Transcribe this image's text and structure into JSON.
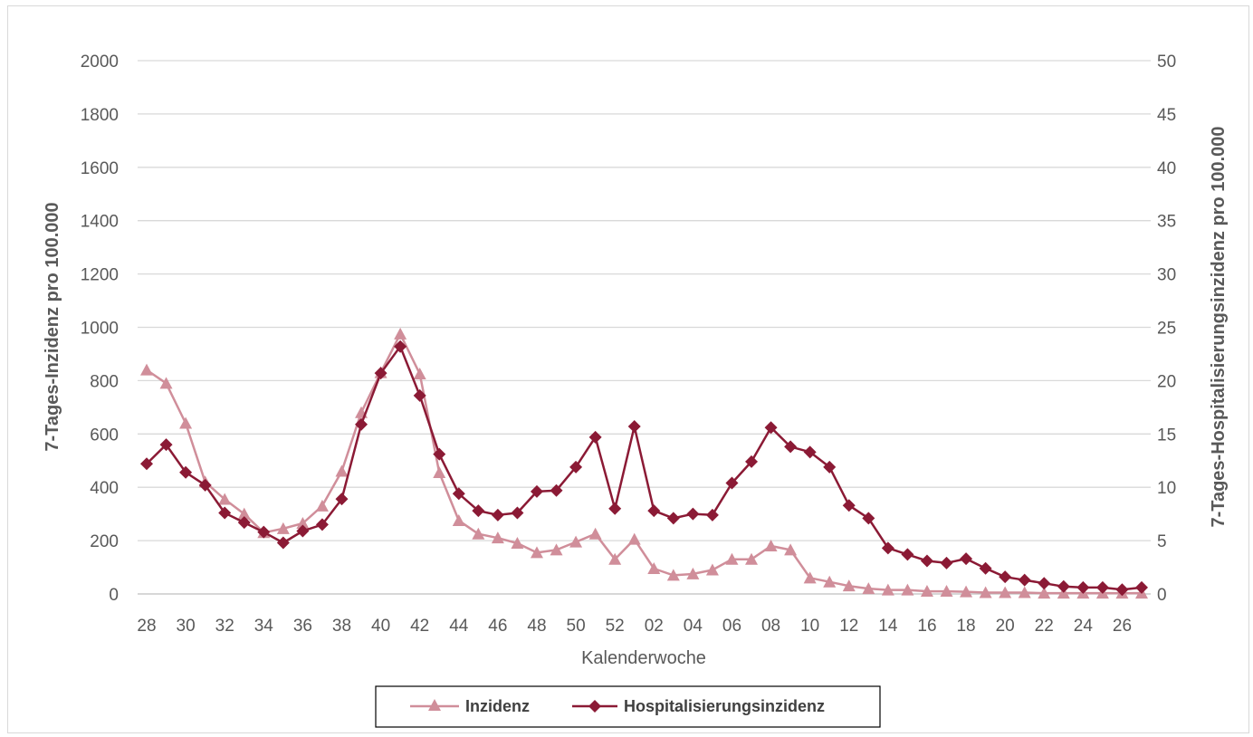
{
  "chart_data": {
    "type": "line",
    "xlabel": "Kalenderwoche",
    "ylabel_left": "7-Tages-Inzidenz pro 100.000",
    "ylabel_right": "7-Tages-Hospitalisierungsinzidenz pro 100.000",
    "ylim_left": [
      0,
      2000
    ],
    "ylim_right": [
      0,
      50
    ],
    "yticks_left": [
      "0",
      "200",
      "400",
      "600",
      "800",
      "1000",
      "1200",
      "1400",
      "1600",
      "1800",
      "2000"
    ],
    "yticks_right": [
      "0",
      "5",
      "10",
      "15",
      "20",
      "25",
      "30",
      "35",
      "40",
      "45",
      "50"
    ],
    "grid": true,
    "legend_position": "bottom",
    "x": [
      "28",
      "29",
      "30",
      "31",
      "32",
      "33",
      "34",
      "35",
      "36",
      "37",
      "38",
      "39",
      "40",
      "41",
      "42",
      "43",
      "44",
      "45",
      "46",
      "47",
      "48",
      "49",
      "50",
      "51",
      "52",
      "01",
      "02",
      "03",
      "04",
      "05",
      "06",
      "07",
      "08",
      "09",
      "10",
      "11",
      "12",
      "13",
      "14",
      "15",
      "16",
      "17",
      "18",
      "19",
      "20",
      "21",
      "22",
      "23",
      "24",
      "25",
      "26",
      "27"
    ],
    "x_tick_labels": [
      "28",
      "30",
      "32",
      "34",
      "36",
      "38",
      "40",
      "42",
      "44",
      "46",
      "48",
      "50",
      "52",
      "02",
      "04",
      "06",
      "08",
      "10",
      "12",
      "14",
      "16",
      "18",
      "20",
      "22",
      "24",
      "26"
    ],
    "series": [
      {
        "name": "Inzidenz",
        "axis": "left",
        "color": "#d08e9a",
        "marker": "triangle",
        "values": [
          840,
          790,
          640,
          420,
          355,
          300,
          230,
          245,
          265,
          330,
          460,
          680,
          830,
          975,
          825,
          455,
          275,
          225,
          210,
          190,
          155,
          165,
          195,
          225,
          130,
          205,
          95,
          70,
          75,
          90,
          130,
          130,
          180,
          165,
          60,
          45,
          30,
          20,
          15,
          15,
          10,
          10,
          8,
          5,
          5,
          5,
          3,
          3,
          3,
          3,
          3,
          3
        ]
      },
      {
        "name": "Hospitalisierungsinzidenz",
        "axis": "right",
        "color": "#8b1a35",
        "marker": "diamond",
        "values": [
          12.2,
          14.0,
          11.4,
          10.2,
          7.6,
          6.7,
          5.8,
          4.8,
          5.9,
          6.5,
          8.9,
          15.9,
          20.7,
          23.2,
          18.6,
          13.1,
          9.4,
          7.8,
          7.4,
          7.6,
          9.6,
          9.7,
          11.9,
          14.7,
          8.0,
          15.7,
          7.8,
          7.1,
          7.5,
          7.4,
          10.4,
          12.4,
          15.6,
          13.8,
          13.3,
          11.9,
          8.3,
          7.1,
          4.3,
          3.7,
          3.1,
          2.9,
          3.3,
          2.4,
          1.6,
          1.3,
          1.0,
          0.7,
          0.6,
          0.6,
          0.4,
          0.6
        ]
      }
    ]
  }
}
